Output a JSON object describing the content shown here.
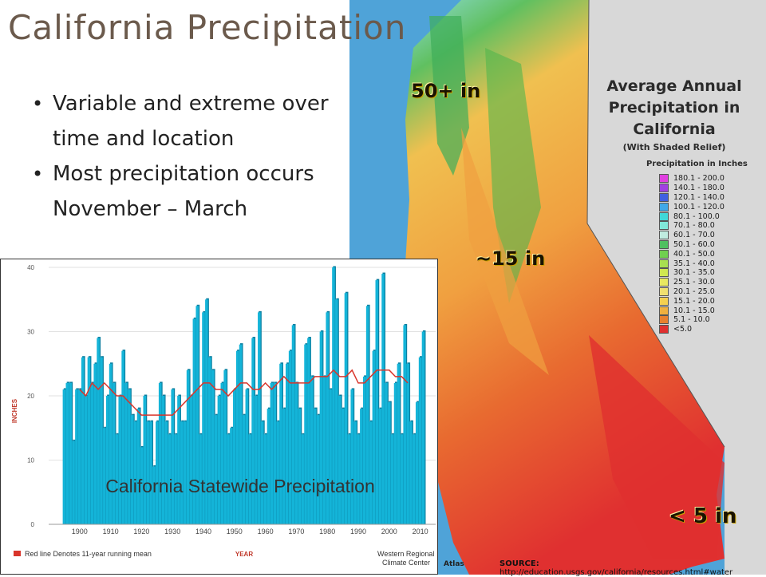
{
  "slide": {
    "title": "California Precipitation",
    "bullets": [
      "Variable and extreme over time and location",
      "Most precipitation occurs November – March"
    ]
  },
  "map": {
    "title_lines": [
      "Average Annual",
      "Precipitation in",
      "California"
    ],
    "subtitle": "(With Shaded Relief)",
    "legend_title": "Precipitation in Inches",
    "legend": [
      {
        "label": "180.1 - 200.0",
        "color": "#e040e0"
      },
      {
        "label": "140.1 - 180.0",
        "color": "#a040e0"
      },
      {
        "label": "120.1 - 140.0",
        "color": "#4060e0"
      },
      {
        "label": "100.1 - 120.0",
        "color": "#40a8e8"
      },
      {
        "label": "80.1 - 100.0",
        "color": "#40d8d8"
      },
      {
        "label": "70.1 - 80.0",
        "color": "#80e8d8"
      },
      {
        "label": "60.1 - 70.0",
        "color": "#c0ece0"
      },
      {
        "label": "50.1 - 60.0",
        "color": "#50c060"
      },
      {
        "label": "40.1 - 50.0",
        "color": "#70d050"
      },
      {
        "label": "35.1 - 40.0",
        "color": "#a8e050"
      },
      {
        "label": "30.1 - 35.0",
        "color": "#d0e850"
      },
      {
        "label": "25.1 - 30.0",
        "color": "#e8e860"
      },
      {
        "label": "20.1 - 25.0",
        "color": "#f0e070"
      },
      {
        "label": "15.1 - 20.0",
        "color": "#f5d050"
      },
      {
        "label": "10.1 - 15.0",
        "color": "#f0b040"
      },
      {
        "label": "5.1 - 10.0",
        "color": "#e88030"
      },
      {
        "label": "<5.0",
        "color": "#e03030"
      }
    ],
    "labels": {
      "north": "50+ in",
      "central": "~15 in",
      "south": "< 5 in"
    },
    "atlas_word": "Atlas",
    "source_label": "SOURCE:",
    "source_url": "http://education.usgs.gov/california/resources.html#water"
  },
  "chart_data": {
    "type": "bar",
    "title": "California Statewide Precipitation",
    "ylabel": "INCHES",
    "xlabel": "YEAR",
    "ylim": [
      0,
      40
    ],
    "yticks": [
      0,
      10,
      20,
      30,
      40
    ],
    "xticks": [
      1900,
      1910,
      1920,
      1930,
      1940,
      1950,
      1960,
      1970,
      1980,
      1990,
      2000,
      2010
    ],
    "footnote": "Red line Denotes 11-year running mean",
    "credit": "Western Regional Climate Center",
    "x": [
      1895,
      1896,
      1897,
      1898,
      1899,
      1900,
      1901,
      1902,
      1903,
      1904,
      1905,
      1906,
      1907,
      1908,
      1909,
      1910,
      1911,
      1912,
      1913,
      1914,
      1915,
      1916,
      1917,
      1918,
      1919,
      1920,
      1921,
      1922,
      1923,
      1924,
      1925,
      1926,
      1927,
      1928,
      1929,
      1930,
      1931,
      1932,
      1933,
      1934,
      1935,
      1936,
      1937,
      1938,
      1939,
      1940,
      1941,
      1942,
      1943,
      1944,
      1945,
      1946,
      1947,
      1948,
      1949,
      1950,
      1951,
      1952,
      1953,
      1954,
      1955,
      1956,
      1957,
      1958,
      1959,
      1960,
      1961,
      1962,
      1963,
      1964,
      1965,
      1966,
      1967,
      1968,
      1969,
      1970,
      1971,
      1972,
      1973,
      1974,
      1975,
      1976,
      1977,
      1978,
      1979,
      1980,
      1981,
      1982,
      1983,
      1984,
      1985,
      1986,
      1987,
      1988,
      1989,
      1990,
      1991,
      1992,
      1993,
      1994,
      1995,
      1996,
      1997,
      1998,
      1999,
      2000,
      2001,
      2002,
      2003,
      2004,
      2005,
      2006,
      2007,
      2008,
      2009,
      2010,
      2011
    ],
    "values": [
      21,
      22,
      22,
      13,
      21,
      21,
      26,
      20,
      26,
      22,
      25,
      29,
      26,
      15,
      20,
      25,
      22,
      14,
      20,
      27,
      22,
      21,
      17,
      16,
      18,
      12,
      20,
      16,
      16,
      9,
      16,
      22,
      20,
      16,
      14,
      21,
      14,
      20,
      16,
      16,
      24,
      20,
      32,
      34,
      14,
      33,
      35,
      26,
      24,
      17,
      20,
      22,
      24,
      14,
      15,
      21,
      27,
      28,
      17,
      21,
      14,
      29,
      20,
      33,
      16,
      14,
      18,
      22,
      22,
      16,
      25,
      18,
      25,
      27,
      31,
      22,
      18,
      14,
      28,
      29,
      23,
      18,
      17,
      30,
      23,
      33,
      21,
      40,
      35,
      20,
      18,
      36,
      14,
      21,
      16,
      14,
      18,
      23,
      34,
      16,
      27,
      38,
      18,
      39,
      22,
      19,
      14,
      22,
      25,
      14,
      31,
      25,
      16,
      14,
      19,
      26,
      30
    ],
    "running_mean": {
      "x": [
        1900,
        1902,
        1904,
        1906,
        1908,
        1910,
        1912,
        1914,
        1916,
        1918,
        1920,
        1922,
        1924,
        1926,
        1928,
        1930,
        1932,
        1934,
        1936,
        1938,
        1940,
        1942,
        1944,
        1946,
        1948,
        1950,
        1952,
        1954,
        1956,
        1958,
        1960,
        1962,
        1964,
        1966,
        1968,
        1970,
        1972,
        1974,
        1976,
        1978,
        1980,
        1982,
        1984,
        1986,
        1988,
        1990,
        1992,
        1994,
        1996,
        1998,
        2000,
        2002,
        2004,
        2006
      ],
      "y": [
        21,
        20,
        22,
        21,
        22,
        21,
        20,
        20,
        19,
        18,
        17,
        17,
        17,
        17,
        17,
        17,
        18,
        19,
        20,
        21,
        22,
        22,
        21,
        21,
        20,
        21,
        22,
        22,
        21,
        21,
        22,
        21,
        22,
        23,
        22,
        22,
        22,
        22,
        23,
        23,
        23,
        24,
        23,
        23,
        24,
        22,
        22,
        23,
        24,
        24,
        24,
        23,
        23,
        22
      ]
    }
  }
}
